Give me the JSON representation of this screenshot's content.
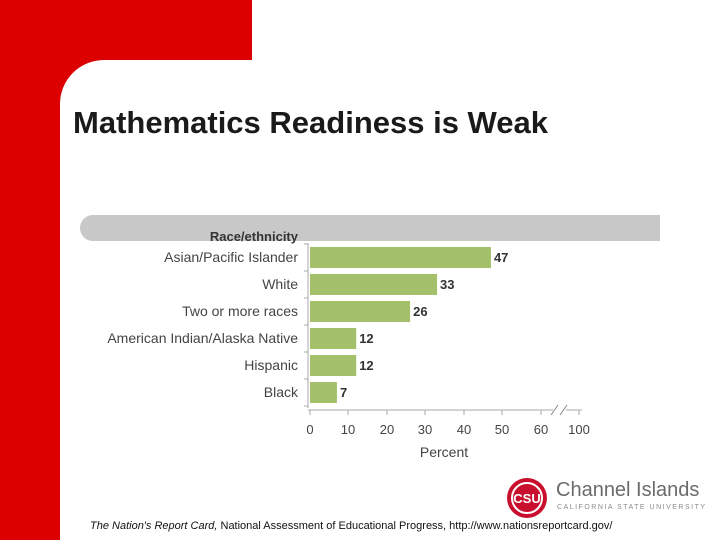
{
  "slide": {
    "title": "Mathematics Readiness is Weak",
    "source_italic": "The Nation's Report Card,",
    "source_rest": " National Assessment of Educational Progress, http://www.nationsreportcard.gov/"
  },
  "logo": {
    "name": "Channel Islands",
    "subtitle": "CALIFORNIA STATE UNIVERSITY",
    "monogram": "CSU"
  },
  "colors": {
    "accent_red": "#dc0000",
    "bar_green": "#a4c06a",
    "band_gray": "#c8c8c8"
  },
  "chart_data": {
    "type": "bar",
    "orientation": "horizontal",
    "category_header": "Race/ethnicity",
    "categories": [
      "Asian/Pacific Islander",
      "White",
      "Two or more races",
      "American Indian/Alaska Native",
      "Hispanic",
      "Black"
    ],
    "values": [
      47,
      33,
      26,
      12,
      12,
      7
    ],
    "xlabel": "Percent",
    "xticks": [
      "0",
      "10",
      "20",
      "30",
      "40",
      "50",
      "60",
      "100"
    ],
    "xlim": [
      0,
      100
    ],
    "axis_break": "between 60 and 100"
  }
}
